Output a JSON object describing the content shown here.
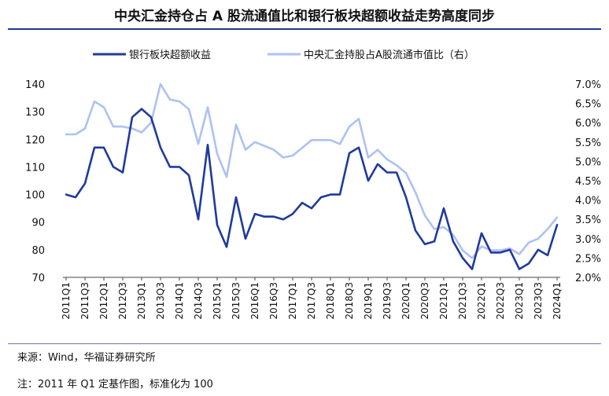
{
  "title": "中央汇金持仓占 A 股流通值比和银行板块超额收益走势高度同步",
  "source": "来源：Wind，华福证券研究所",
  "note": "注：2011 年 Q1 定基作图，标准化为 100",
  "colors": {
    "bank": "#1f3a9e",
    "huijin": "#adc1f2",
    "rule": "#1f3a8a"
  },
  "chart_data": {
    "type": "line",
    "legend_position": "top",
    "grid": false,
    "x": [
      "2011Q1",
      "2011Q2",
      "2011Q3",
      "2011Q4",
      "2012Q1",
      "2012Q2",
      "2012Q3",
      "2012Q4",
      "2013Q1",
      "2013Q2",
      "2013Q3",
      "2013Q4",
      "2014Q1",
      "2014Q2",
      "2014Q3",
      "2014Q4",
      "2015Q1",
      "2015Q2",
      "2015Q3",
      "2015Q4",
      "2016Q1",
      "2016Q2",
      "2016Q3",
      "2016Q4",
      "2017Q1",
      "2017Q2",
      "2017Q3",
      "2017Q4",
      "2018Q1",
      "2018Q2",
      "2018Q3",
      "2018Q4",
      "2019Q1",
      "2019Q2",
      "2019Q3",
      "2019Q4",
      "2020Q1",
      "2020Q2",
      "2020Q3",
      "2020Q4",
      "2021Q1",
      "2021Q2",
      "2021Q3",
      "2021Q4",
      "2022Q1",
      "2022Q2",
      "2022Q3",
      "2022Q4",
      "2023Q1",
      "2023Q2",
      "2023Q3",
      "2023Q4",
      "2024Q1"
    ],
    "x_tick_labels": [
      "2011Q1",
      "2011Q3",
      "2012Q1",
      "2012Q3",
      "2013Q1",
      "2013Q3",
      "2014Q1",
      "2014Q3",
      "2015Q1",
      "2015Q3",
      "2016Q1",
      "2016Q3",
      "2017Q1",
      "2017Q3",
      "2018Q1",
      "2018Q3",
      "2019Q1",
      "2019Q3",
      "2020Q1",
      "2020Q3",
      "2021Q1",
      "2021Q3",
      "2022Q1",
      "2022Q3",
      "2023Q1",
      "2023Q3",
      "2024Q1"
    ],
    "y_left": {
      "ylim": [
        70,
        140
      ],
      "ticks": [
        70,
        80,
        90,
        100,
        110,
        120,
        130,
        140
      ]
    },
    "y_right": {
      "ylim": [
        2.0,
        7.0
      ],
      "ticks": [
        "2.0%",
        "2.5%",
        "3.0%",
        "3.5%",
        "4.0%",
        "4.5%",
        "5.0%",
        "5.5%",
        "6.0%",
        "6.5%",
        "7.0%"
      ]
    },
    "series": [
      {
        "name": "银行板块超额收益",
        "axis": "left",
        "values": [
          100,
          99,
          104,
          117,
          117,
          110,
          108,
          128,
          131,
          128,
          117,
          110,
          110,
          107,
          91,
          118,
          89,
          81,
          99,
          84,
          93,
          92,
          92,
          91,
          93,
          97,
          95,
          99,
          100,
          100,
          115,
          117,
          105,
          111,
          108,
          108,
          99,
          87,
          82,
          83,
          95,
          83,
          77,
          73,
          86,
          79,
          79,
          80,
          73,
          75,
          80,
          78,
          89
        ]
      },
      {
        "name": "中央汇金持股占A股流通市值比（右）",
        "axis": "right",
        "values": [
          5.7,
          5.7,
          5.85,
          6.55,
          6.4,
          5.9,
          5.9,
          5.85,
          5.75,
          6.0,
          7.0,
          6.6,
          6.55,
          6.35,
          5.45,
          6.4,
          5.2,
          4.6,
          5.95,
          5.3,
          5.5,
          5.4,
          5.3,
          5.1,
          5.15,
          5.35,
          5.55,
          5.55,
          5.55,
          5.45,
          5.9,
          6.1,
          5.1,
          5.3,
          5.05,
          4.9,
          4.7,
          4.2,
          3.6,
          3.25,
          3.3,
          3.1,
          2.7,
          2.5,
          2.8,
          2.7,
          2.7,
          2.75,
          2.6,
          2.9,
          3.0,
          3.25,
          3.55
        ]
      }
    ]
  }
}
